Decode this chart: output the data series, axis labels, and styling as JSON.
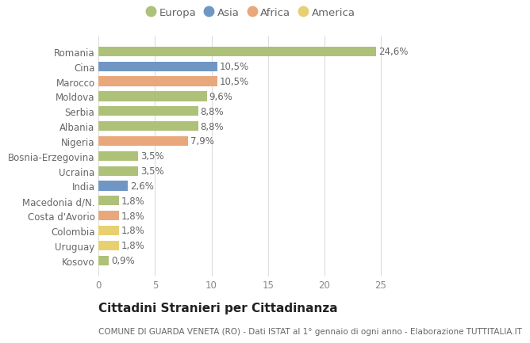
{
  "countries": [
    "Kosovo",
    "Uruguay",
    "Colombia",
    "Costa d'Avorio",
    "Macedonia d/N.",
    "India",
    "Ucraina",
    "Bosnia-Erzegovina",
    "Nigeria",
    "Albania",
    "Serbia",
    "Moldova",
    "Marocco",
    "Cina",
    "Romania"
  ],
  "values": [
    0.9,
    1.8,
    1.8,
    1.8,
    1.8,
    2.6,
    3.5,
    3.5,
    7.9,
    8.8,
    8.8,
    9.6,
    10.5,
    10.5,
    24.6
  ],
  "continents": [
    "Europa",
    "America",
    "America",
    "Africa",
    "Europa",
    "Asia",
    "Europa",
    "Europa",
    "Africa",
    "Europa",
    "Europa",
    "Europa",
    "Africa",
    "Asia",
    "Europa"
  ],
  "labels": [
    "0,9%",
    "1,8%",
    "1,8%",
    "1,8%",
    "1,8%",
    "2,6%",
    "3,5%",
    "3,5%",
    "7,9%",
    "8,8%",
    "8,8%",
    "9,6%",
    "10,5%",
    "10,5%",
    "24,6%"
  ],
  "colors": {
    "Europa": "#adc178",
    "Asia": "#7096c4",
    "Africa": "#e8a87c",
    "America": "#e8d070"
  },
  "title": "Cittadini Stranieri per Cittadinanza",
  "subtitle": "COMUNE DI GUARDA VENETA (RO) - Dati ISTAT al 1° gennaio di ogni anno - Elaborazione TUTTITALIA.IT",
  "xlim": [
    0,
    27
  ],
  "xticks": [
    0,
    5,
    10,
    15,
    20,
    25
  ],
  "background_color": "#ffffff",
  "grid_color": "#dddddd",
  "bar_height": 0.65,
  "label_fontsize": 8.5,
  "tick_fontsize": 8.5,
  "title_fontsize": 11,
  "subtitle_fontsize": 7.5,
  "legend_fontsize": 9.5
}
